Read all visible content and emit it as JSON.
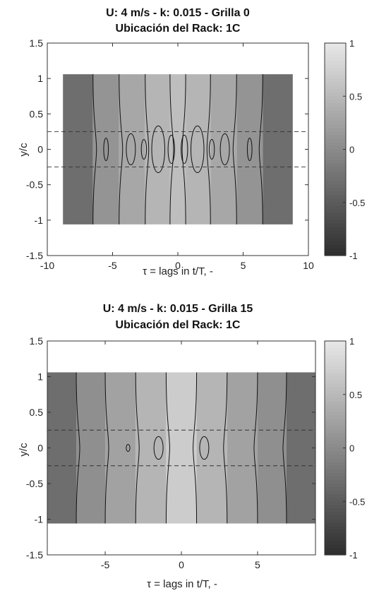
{
  "chart_data": [
    {
      "type": "heatmap",
      "title_line1": "U: 4 m/s - k: 0.015 - Grilla 0",
      "title_line2": "Ubicación del Rack: 1C",
      "xlabel": "τ = lags in t/T, -",
      "ylabel": "y/c",
      "xlim": [
        -10,
        10
      ],
      "ylim": [
        -1.5,
        1.5
      ],
      "xticks": [
        "-10",
        "-5",
        "0",
        "5",
        "10"
      ],
      "yticks": [
        "1.5",
        "1",
        "0.5",
        "0",
        "-0.5",
        "-1",
        "-1.5"
      ],
      "data_extent_x": [
        -8.8,
        8.8
      ],
      "data_extent_y": [
        -1.06,
        1.06
      ],
      "dashed_lines_y": [
        0.25,
        -0.25
      ],
      "bands_x": [
        -8.8,
        -6.5,
        -4.5,
        -2.5,
        -0.6,
        0.6,
        2.5,
        4.5,
        6.5,
        8.8
      ],
      "band_values": [
        -0.3,
        0.1,
        0.3,
        0.45,
        0.55,
        0.45,
        0.3,
        0.1,
        -0.3
      ],
      "ellipses": [
        {
          "x": -5.5,
          "ry": 0.16,
          "rx": 0.18
        },
        {
          "x": -3.6,
          "ry": 0.22,
          "rx": 0.35
        },
        {
          "x": -2.6,
          "ry": 0.14,
          "rx": 0.2
        },
        {
          "x": -1.5,
          "ry": 0.33,
          "rx": 0.5
        },
        {
          "x": -0.5,
          "ry": 0.2,
          "rx": 0.25
        },
        {
          "x": 0.5,
          "ry": 0.2,
          "rx": 0.25
        },
        {
          "x": 1.5,
          "ry": 0.33,
          "rx": 0.5
        },
        {
          "x": 2.6,
          "ry": 0.14,
          "rx": 0.2
        },
        {
          "x": 3.6,
          "ry": 0.22,
          "rx": 0.35
        },
        {
          "x": 5.5,
          "ry": 0.16,
          "rx": 0.18
        }
      ],
      "colorbar": {
        "min": -1,
        "max": 1,
        "ticks": [
          "1",
          "0.5",
          "0",
          "-0.5",
          "-1"
        ]
      }
    },
    {
      "type": "heatmap",
      "title_line1": "U: 4 m/s - k: 0.015 - Grilla 15",
      "title_line2": "Ubicación del Rack: 1C",
      "xlabel": "τ = lags in t/T, -",
      "ylabel": "y/c",
      "xlim": [
        -8.8,
        8.8
      ],
      "ylim": [
        -1.5,
        1.5
      ],
      "xticks": [
        "-5",
        "0",
        "5"
      ],
      "yticks": [
        "1.5",
        "1",
        "0.5",
        "0",
        "-0.5",
        "-1",
        "-1.5"
      ],
      "data_extent_x": [
        -8.8,
        8.8
      ],
      "data_extent_y": [
        -1.06,
        1.06
      ],
      "dashed_lines_y": [
        0.25,
        -0.25
      ],
      "bands_x": [
        -8.8,
        -6.9,
        -5.0,
        -3.0,
        -1.0,
        1.0,
        3.0,
        5.0,
        6.9,
        8.8
      ],
      "band_values": [
        -0.3,
        0.05,
        0.25,
        0.45,
        0.7,
        0.45,
        0.25,
        0.05,
        -0.3
      ],
      "ellipses": [
        {
          "x": -3.5,
          "ry": 0.05,
          "rx": 0.12
        },
        {
          "x": -1.5,
          "ry": 0.16,
          "rx": 0.3
        },
        {
          "x": 1.5,
          "ry": 0.16,
          "rx": 0.3
        }
      ],
      "colorbar": {
        "min": -1,
        "max": 1,
        "ticks": [
          "1",
          "0.5",
          "0",
          "-0.5",
          "-1"
        ]
      }
    }
  ]
}
